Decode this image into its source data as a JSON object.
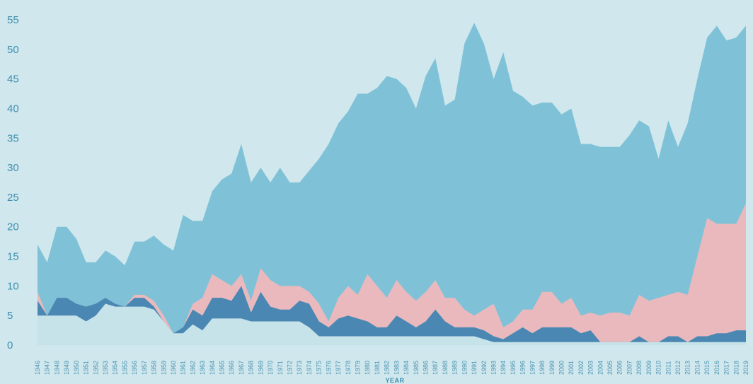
{
  "chart_data": {
    "type": "area",
    "stacked": false,
    "xlabel": "YEAR",
    "ylabel": "",
    "ylim": [
      0,
      55
    ],
    "yticks": [
      0,
      5,
      10,
      15,
      20,
      25,
      30,
      35,
      40,
      45,
      50,
      55
    ],
    "x": [
      1946,
      1947,
      1948,
      1949,
      1950,
      1951,
      1952,
      1953,
      1954,
      1955,
      1956,
      1957,
      1958,
      1959,
      1960,
      1961,
      1962,
      1963,
      1964,
      1965,
      1966,
      1967,
      1968,
      1969,
      1970,
      1971,
      1972,
      1973,
      1974,
      1975,
      1976,
      1977,
      1978,
      1979,
      1980,
      1981,
      1982,
      1983,
      1984,
      1985,
      1986,
      1987,
      1988,
      1989,
      1990,
      1991,
      1992,
      1993,
      1994,
      1995,
      1996,
      1997,
      1998,
      1999,
      2000,
      2001,
      2002,
      2003,
      2004,
      2005,
      2006,
      2007,
      2008,
      2009,
      2010,
      2011,
      2012,
      2013,
      2014,
      2015,
      2016,
      2017,
      2018,
      2019
    ],
    "grid": false,
    "legend": "none",
    "colors": {
      "background": "#cfe7ed",
      "light": "#c6e3e9",
      "total": "#7fc2d8",
      "pink": "#e9b9bd",
      "dark": "#4a88b3",
      "axis_text": "#3f8fae"
    },
    "series": [
      {
        "values": [
          17,
          14,
          20,
          20,
          18,
          14,
          14,
          16,
          15,
          13.5,
          17.5,
          17.5,
          18.5,
          17,
          16,
          22,
          21,
          21,
          26,
          28,
          29,
          34,
          27.5,
          30,
          27.5,
          30,
          27.5,
          27.5,
          29.5,
          31.5,
          34,
          37.5,
          39.5,
          42.5,
          42.5,
          43.5,
          45.5,
          45,
          43.5,
          40,
          45.5,
          48.5,
          40.5,
          41.5,
          51,
          54.5,
          51,
          45,
          49.5,
          43,
          42,
          40.5,
          41,
          41,
          39,
          40,
          34,
          34,
          33.5,
          33.5,
          33.5,
          35.5,
          38,
          37,
          31.5,
          38,
          33.5,
          37.5,
          45,
          52,
          54,
          51.5,
          52,
          54
        ]
      },
      {
        "values": [
          9,
          5,
          8,
          8,
          7,
          6,
          7,
          8,
          7,
          6.5,
          8.5,
          8.5,
          7.5,
          5,
          2,
          3,
          7,
          8,
          12,
          11,
          10,
          12,
          7.5,
          13,
          11,
          10,
          10,
          10,
          9,
          7,
          4,
          8,
          10,
          8.5,
          12,
          10,
          8,
          11,
          9,
          7.5,
          9,
          11,
          8,
          8,
          6,
          5,
          6,
          7,
          3,
          4,
          6,
          6,
          9,
          9,
          7,
          8,
          5,
          5.5,
          5,
          5.5,
          5.5,
          5,
          8.5,
          7.5,
          8,
          8.5,
          9,
          8.5,
          15,
          21.5,
          20.5,
          20.5,
          20.5,
          24
        ]
      },
      {
        "values": [
          7.5,
          5,
          8,
          8,
          7,
          6.5,
          7,
          8,
          7,
          6.5,
          8,
          8,
          6.5,
          4,
          2,
          3,
          6,
          5,
          8,
          8,
          7.5,
          10,
          5.5,
          9,
          6.5,
          6,
          6,
          7.5,
          7,
          4,
          3,
          4.5,
          5,
          4.5,
          4,
          3,
          3,
          5,
          4,
          3,
          4,
          6,
          4,
          3,
          3,
          3,
          2.5,
          1.5,
          1,
          2,
          3,
          2,
          3,
          3,
          3,
          3,
          2,
          2.5,
          0.5,
          0.5,
          0.5,
          0.5,
          1.5,
          0.5,
          0.5,
          1.5,
          1.5,
          0.5,
          1.5,
          1.5,
          2,
          2,
          2.5,
          2.5
        ]
      },
      {
        "values": [
          5,
          5,
          5,
          5,
          5,
          4,
          5,
          7,
          6.5,
          6.5,
          6.5,
          6.5,
          6,
          4,
          2,
          2,
          3.5,
          2.5,
          4.5,
          4.5,
          4.5,
          4.5,
          4,
          4,
          4,
          4,
          4,
          4,
          3,
          1.5,
          1.5,
          1.5,
          1.5,
          1.5,
          1.5,
          1.5,
          1.5,
          1.5,
          1.5,
          1.5,
          1.5,
          1.5,
          1.5,
          1.5,
          1.5,
          1.5,
          1,
          0.5,
          0.5,
          0.5,
          0.5,
          0.5,
          0.5,
          0.5,
          0.5,
          0.5,
          0.5,
          0.5,
          0.5,
          0.5,
          0.5,
          0.5,
          0.5,
          0.5,
          0.5,
          0.5,
          0.5,
          0.5,
          0.5,
          0.5,
          0.5,
          0.5,
          0.5,
          0.5
        ]
      }
    ]
  }
}
